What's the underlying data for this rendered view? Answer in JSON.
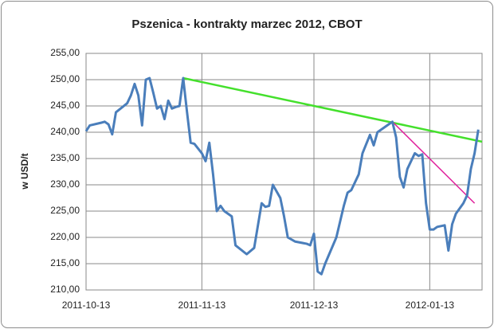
{
  "chart_data": {
    "type": "line",
    "title": "Pszenica - kontrakty marzec 2012, CBOT",
    "y_label": "w USD/t",
    "x": [
      "2011-10-13",
      "2011-10-14",
      "2011-10-17",
      "2011-10-18",
      "2011-10-19",
      "2011-10-20",
      "2011-10-21",
      "2011-10-24",
      "2011-10-25",
      "2011-10-26",
      "2011-10-27",
      "2011-10-28",
      "2011-10-29",
      "2011-10-30",
      "2011-10-31",
      "2011-11-01",
      "2011-11-02",
      "2011-11-03",
      "2011-11-04",
      "2011-11-05",
      "2011-11-06",
      "2011-11-07",
      "2011-11-08",
      "2011-11-09",
      "2011-11-10",
      "2011-11-11",
      "2011-11-13",
      "2011-11-14",
      "2011-11-15",
      "2011-11-16",
      "2011-11-17",
      "2011-11-18",
      "2011-11-19",
      "2011-11-21",
      "2011-11-22",
      "2011-11-25",
      "2011-11-27",
      "2011-11-29",
      "2011-11-30",
      "2011-12-01",
      "2011-12-02",
      "2011-12-04",
      "2011-12-05",
      "2011-12-06",
      "2011-12-08",
      "2011-12-11",
      "2011-12-12",
      "2011-12-13",
      "2011-12-14",
      "2011-12-15",
      "2011-12-16",
      "2011-12-19",
      "2011-12-21",
      "2011-12-22",
      "2011-12-23",
      "2011-12-25",
      "2011-12-26",
      "2011-12-28",
      "2011-12-29",
      "2011-12-30",
      "2012-01-02",
      "2012-01-03",
      "2012-01-04",
      "2012-01-05",
      "2012-01-06",
      "2012-01-07",
      "2012-01-09",
      "2012-01-10",
      "2012-01-11",
      "2012-01-12",
      "2012-01-13",
      "2012-01-14",
      "2012-01-15",
      "2012-01-17",
      "2012-01-18",
      "2012-01-19",
      "2012-01-20",
      "2012-01-22",
      "2012-01-23",
      "2012-01-24",
      "2012-01-25",
      "2012-01-26"
    ],
    "series": [
      {
        "color": "#4a7ebb",
        "values": [
          240.2,
          241.3,
          241.8,
          242.0,
          241.5,
          239.6,
          243.8,
          245.5,
          247.0,
          249.2,
          247.0,
          241.3,
          250.0,
          250.3,
          247.5,
          244.5,
          245.0,
          242.5,
          246.0,
          244.5,
          244.8,
          245.0,
          250.3,
          244.0,
          238.0,
          237.8,
          236.0,
          234.5,
          238.0,
          232.0,
          225.0,
          226.0,
          225.0,
          224.0,
          218.5,
          216.8,
          218.0,
          226.5,
          225.8,
          226.0,
          230.0,
          227.5,
          224.0,
          220.0,
          219.2,
          218.8,
          218.5,
          220.7,
          213.5,
          213.0,
          215.0,
          220.0,
          226.0,
          228.5,
          229.0,
          232.0,
          236.0,
          239.5,
          237.5,
          240.0,
          241.5,
          242.0,
          239.0,
          231.5,
          229.5,
          233.0,
          236.0,
          235.5,
          235.8,
          226.5,
          221.5,
          221.5,
          222.0,
          222.3,
          217.5,
          222.5,
          224.5,
          226.5,
          228.0,
          233.0,
          236.0,
          240.5
        ]
      }
    ],
    "trend_lines": [
      {
        "color": "#44e02c",
        "x": [
          "2011-11-08",
          "2012-01-27"
        ],
        "y": [
          250.3,
          238.2
        ]
      },
      {
        "color": "#e0209c",
        "x": [
          "2012-01-03",
          "2012-01-25"
        ],
        "y": [
          242.0,
          226.5
        ]
      }
    ],
    "xlim": [
      "2011-10-13",
      "2012-01-27"
    ],
    "xticks": [
      "2011-10-13",
      "2011-11-13",
      "2011-12-13",
      "2012-01-13"
    ],
    "ylim": [
      210,
      255
    ],
    "yticks": [
      {
        "value": 210,
        "label": "210,00"
      },
      {
        "value": 215,
        "label": "215,00"
      },
      {
        "value": 220,
        "label": "220,00"
      },
      {
        "value": 225,
        "label": "225,00"
      },
      {
        "value": 230,
        "label": "230,00"
      },
      {
        "value": 235,
        "label": "235,00"
      },
      {
        "value": 240,
        "label": "240,00"
      },
      {
        "value": 245,
        "label": "245,00"
      },
      {
        "value": 250,
        "label": "250,00"
      },
      {
        "value": 255,
        "label": "255,00"
      }
    ],
    "grid": true
  }
}
